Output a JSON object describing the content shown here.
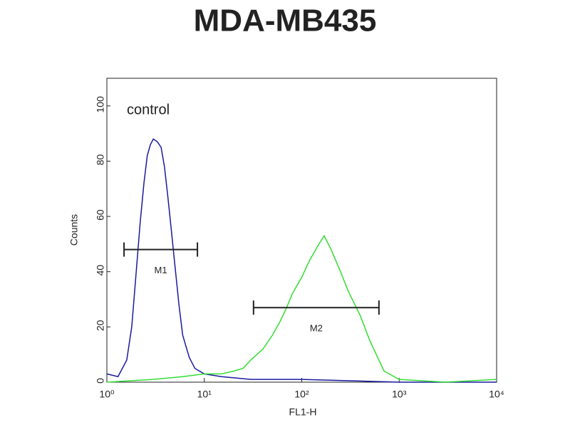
{
  "chart_data": {
    "type": "line",
    "title": "MDA-MB435",
    "xlabel": "FL1-H",
    "ylabel": "Counts",
    "annotation": "control",
    "xscale": "log",
    "xlim": [
      1,
      10000
    ],
    "xticks": [
      {
        "value": 1,
        "label": "10⁰"
      },
      {
        "value": 10,
        "label": "10¹"
      },
      {
        "value": 100,
        "label": "10²"
      },
      {
        "value": 1000,
        "label": "10³"
      },
      {
        "value": 10000,
        "label": "10⁴"
      }
    ],
    "ylim": [
      0,
      110
    ],
    "yticks": [
      0,
      20,
      40,
      60,
      80,
      100
    ],
    "series": [
      {
        "color": "#1a1aa0",
        "x": [
          1,
          1.3,
          1.6,
          1.8,
          2.0,
          2.2,
          2.4,
          2.6,
          2.8,
          3.0,
          3.3,
          3.6,
          3.9,
          4.2,
          4.5,
          5,
          5.5,
          6,
          7,
          8,
          10,
          15,
          30,
          100,
          1000,
          10000
        ],
        "values": [
          3,
          2,
          8,
          20,
          40,
          58,
          72,
          82,
          86,
          88,
          87,
          85,
          78,
          68,
          58,
          42,
          28,
          17,
          9,
          5,
          3,
          2,
          1,
          1,
          0,
          0
        ]
      },
      {
        "color": "#33dd33",
        "x": [
          1,
          3,
          6,
          10,
          15,
          20,
          25,
          30,
          40,
          50,
          60,
          70,
          80,
          100,
          120,
          150,
          170,
          200,
          250,
          300,
          400,
          500,
          700,
          1000,
          3000,
          10000
        ],
        "values": [
          0,
          1,
          2,
          3,
          3,
          4,
          5,
          8,
          12,
          17,
          22,
          27,
          32,
          38,
          44,
          50,
          53,
          48,
          40,
          33,
          24,
          15,
          4,
          1,
          0,
          1
        ]
      }
    ],
    "markers": [
      {
        "label": "M1",
        "x": [
          1.5,
          8.5
        ],
        "y": 48
      },
      {
        "label": "M2",
        "x": [
          32,
          620
        ],
        "y": 27
      }
    ]
  }
}
